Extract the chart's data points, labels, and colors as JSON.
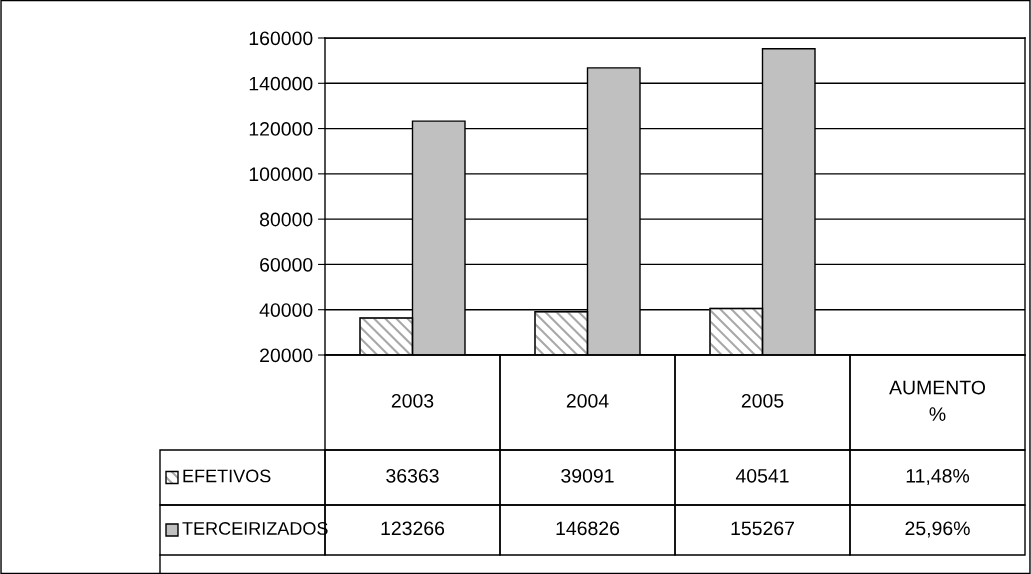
{
  "chart_data": {
    "type": "bar",
    "categories": [
      "2003",
      "2004",
      "2005",
      "AUMENTO %"
    ],
    "series": [
      {
        "name": "EFETIVOS",
        "color": "#a8a8a8",
        "values": [
          36363,
          39091,
          40541,
          null
        ],
        "value_labels": [
          "36363",
          "39091",
          "40541",
          "11,48%"
        ]
      },
      {
        "name": "TERCEIRIZADOS",
        "color": "#c0c0c0",
        "values": [
          123266,
          146826,
          155267,
          null
        ],
        "value_labels": [
          "123266",
          "146826",
          "155267",
          "25,96%"
        ]
      }
    ],
    "ylim": [
      20000,
      160000
    ],
    "yticks": [
      20000,
      40000,
      60000,
      80000,
      100000,
      120000,
      140000,
      160000
    ],
    "grid": "y",
    "legend": "bottom left"
  }
}
